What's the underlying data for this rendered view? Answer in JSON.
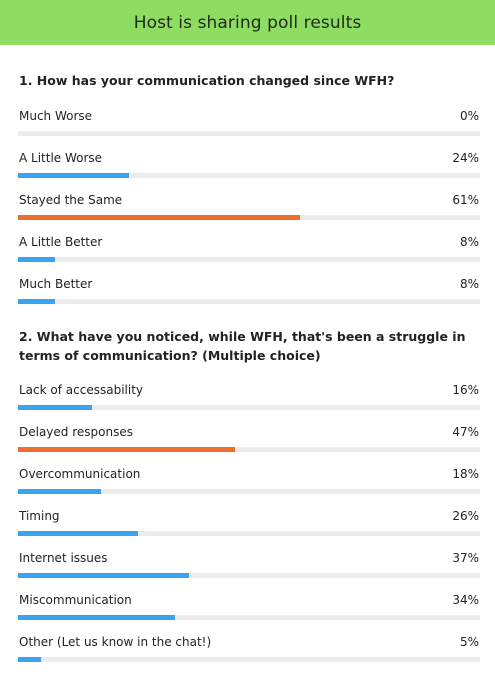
{
  "header": {
    "title": "Host is sharing poll results"
  },
  "colors": {
    "header_bg": "#8fdc63",
    "bar_default": "#3aa3ef",
    "bar_highest": "#ee6f2d",
    "track": "#ececec"
  },
  "questions": [
    {
      "title": "1. How has your communication changed since WFH?",
      "options": [
        {
          "label": "Much Worse",
          "percent_text": "0%",
          "value": 0,
          "highlight": false
        },
        {
          "label": "A Little Worse",
          "percent_text": "24%",
          "value": 24,
          "highlight": false
        },
        {
          "label": "Stayed the Same",
          "percent_text": "61%",
          "value": 61,
          "highlight": true
        },
        {
          "label": "A Little Better",
          "percent_text": "8%",
          "value": 8,
          "highlight": false
        },
        {
          "label": "Much Better",
          "percent_text": "8%",
          "value": 8,
          "highlight": false
        }
      ]
    },
    {
      "title": "2. What have you noticed, while WFH, that's been a struggle in terms of communication? (Multiple choice)",
      "options": [
        {
          "label": "Lack of accessability",
          "percent_text": "16%",
          "value": 16,
          "highlight": false
        },
        {
          "label": "Delayed responses",
          "percent_text": "47%",
          "value": 47,
          "highlight": true
        },
        {
          "label": "Overcommunication",
          "percent_text": "18%",
          "value": 18,
          "highlight": false
        },
        {
          "label": "Timing",
          "percent_text": "26%",
          "value": 26,
          "highlight": false
        },
        {
          "label": "Internet issues",
          "percent_text": "37%",
          "value": 37,
          "highlight": false
        },
        {
          "label": "Miscommunication",
          "percent_text": "34%",
          "value": 34,
          "highlight": false
        },
        {
          "label": "Other (Let us know in the chat!)",
          "percent_text": "5%",
          "value": 5,
          "highlight": false
        }
      ]
    }
  ]
}
